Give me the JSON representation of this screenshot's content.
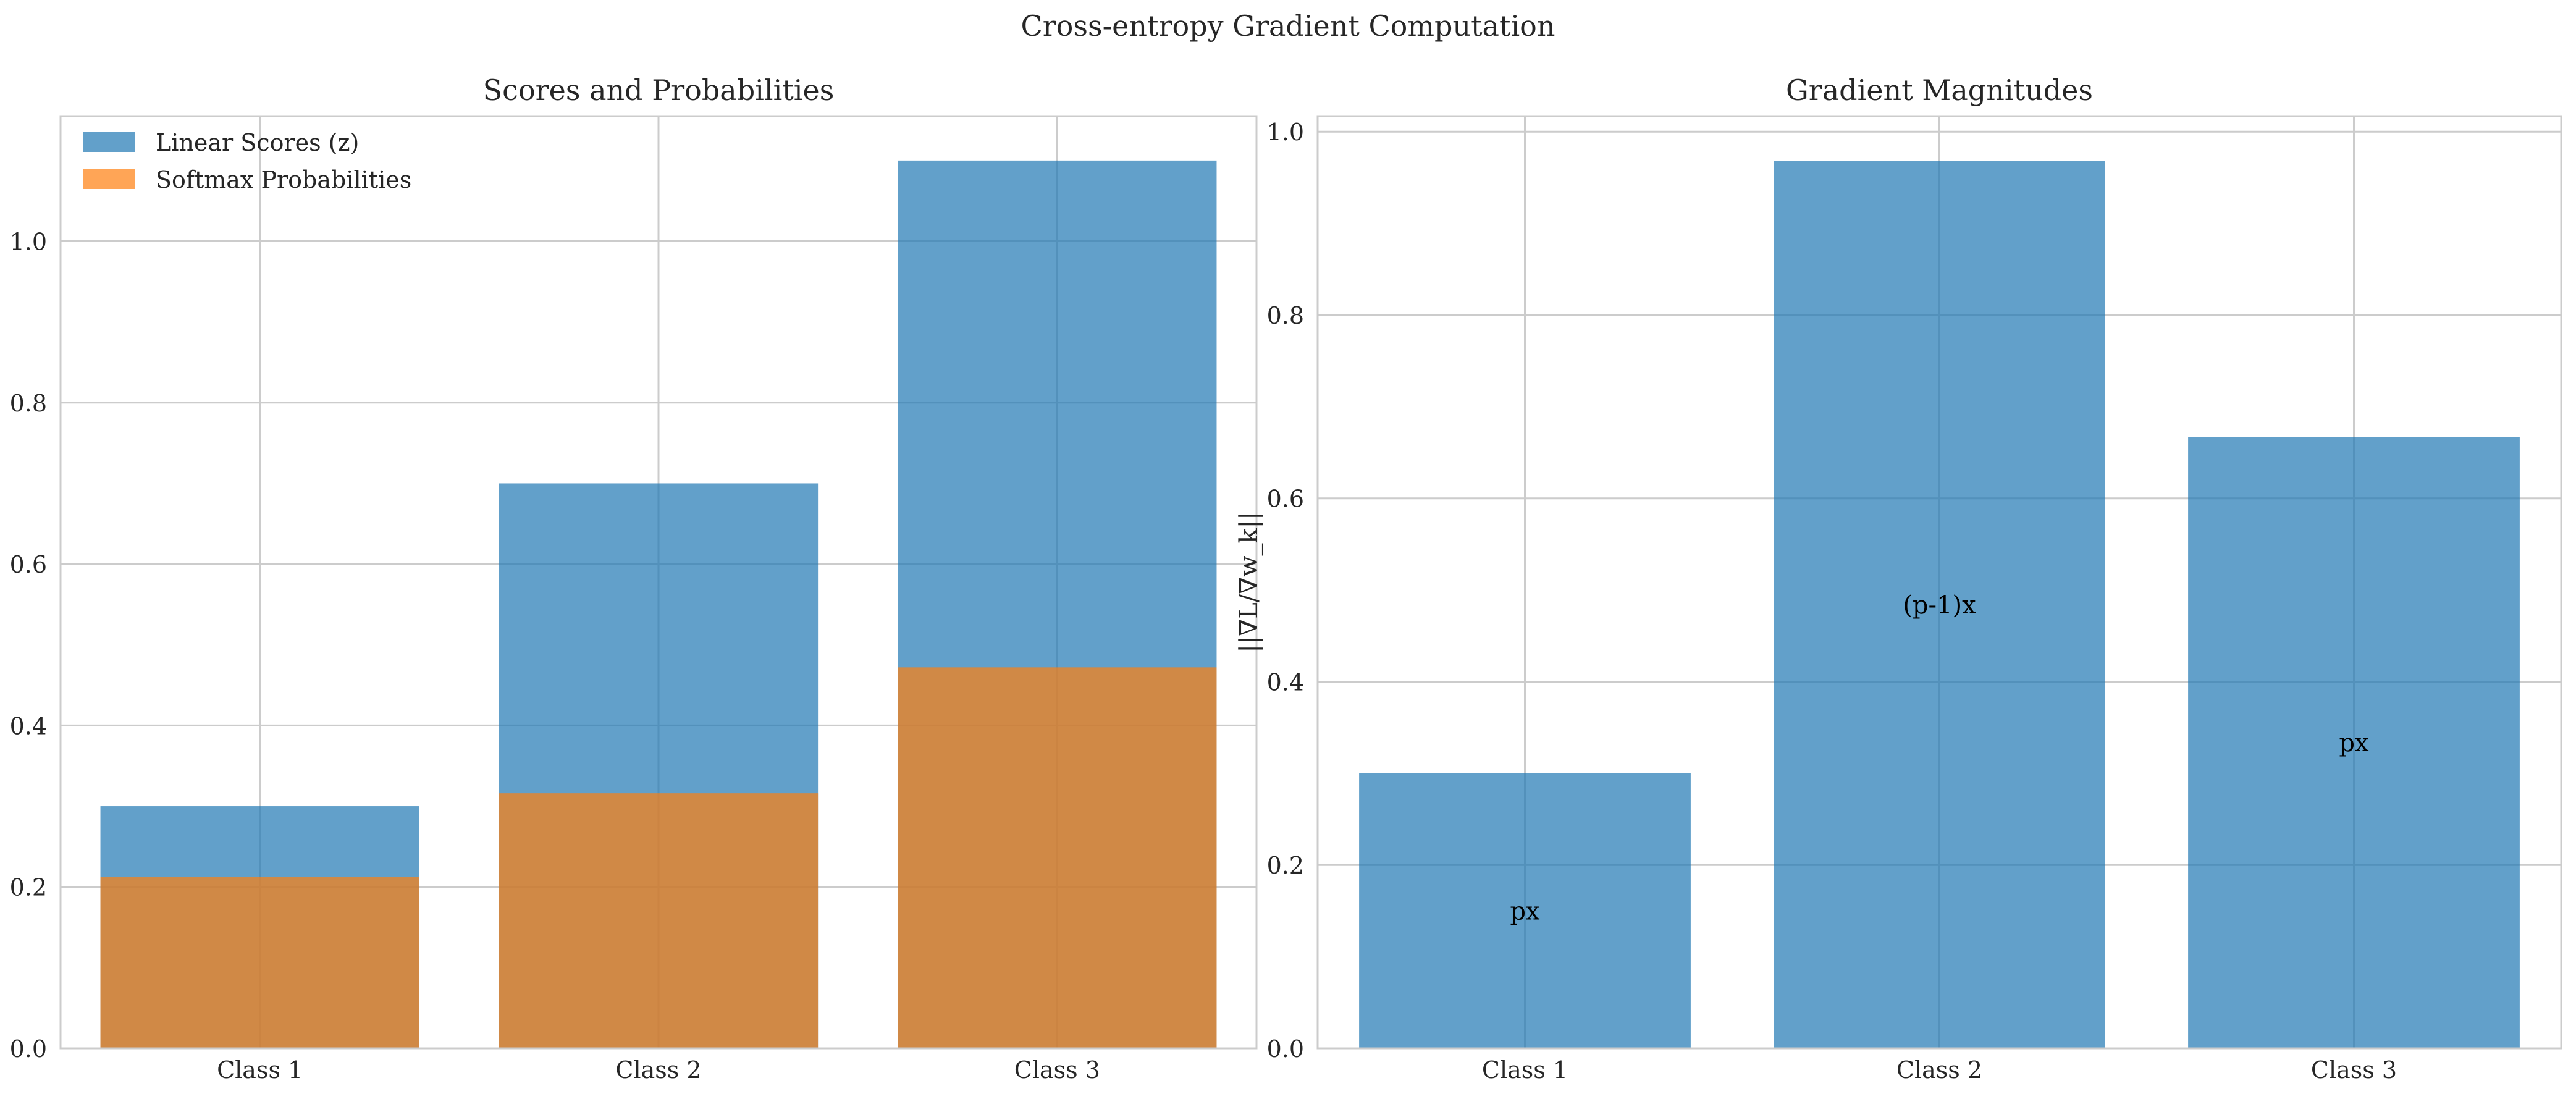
{
  "figure": {
    "suptitle": "Cross-entropy Gradient Computation"
  },
  "colors": {
    "series_blue": "#1f77b4",
    "series_orange": "#ff7f0e",
    "grid": "#cccccc",
    "text": "#262626"
  },
  "chart_data": [
    {
      "type": "bar",
      "title": "Scores and Probabilities",
      "xlabel": "",
      "ylabel": "",
      "categories": [
        "Class 1",
        "Class 2",
        "Class 3"
      ],
      "series": [
        {
          "name": "Linear Scores (z)",
          "values": [
            0.3,
            0.7,
            1.1
          ],
          "color": "#1f77b4",
          "opacity": 0.7
        },
        {
          "name": "Softmax Probabilities",
          "values": [
            0.212,
            0.316,
            0.472
          ],
          "color": "#ff7f0e",
          "opacity": 0.7
        }
      ],
      "ylim": [
        0,
        1.155
      ],
      "yticks": [
        0.0,
        0.2,
        0.4,
        0.6,
        0.8,
        1.0
      ],
      "ytick_labels": [
        "0.0",
        "0.2",
        "0.4",
        "0.6",
        "0.8",
        "1.0"
      ],
      "grid": true,
      "legend": "top-left"
    },
    {
      "type": "bar",
      "title": "Gradient Magnitudes",
      "xlabel": "",
      "ylabel": "||∇L/∇w_k||",
      "categories": [
        "Class 1",
        "Class 2",
        "Class 3"
      ],
      "series": [
        {
          "values": [
            0.3,
            0.968,
            0.667
          ],
          "color": "#1f77b4",
          "opacity": 0.7
        }
      ],
      "annotations": [
        "px",
        "(p-1)x",
        "px"
      ],
      "ylim": [
        0,
        1.017
      ],
      "yticks": [
        0.0,
        0.2,
        0.4,
        0.6,
        0.8,
        1.0
      ],
      "ytick_labels": [
        "0.0",
        "0.2",
        "0.4",
        "0.6",
        "0.8",
        "1.0"
      ],
      "grid": true,
      "legend": "none"
    }
  ]
}
